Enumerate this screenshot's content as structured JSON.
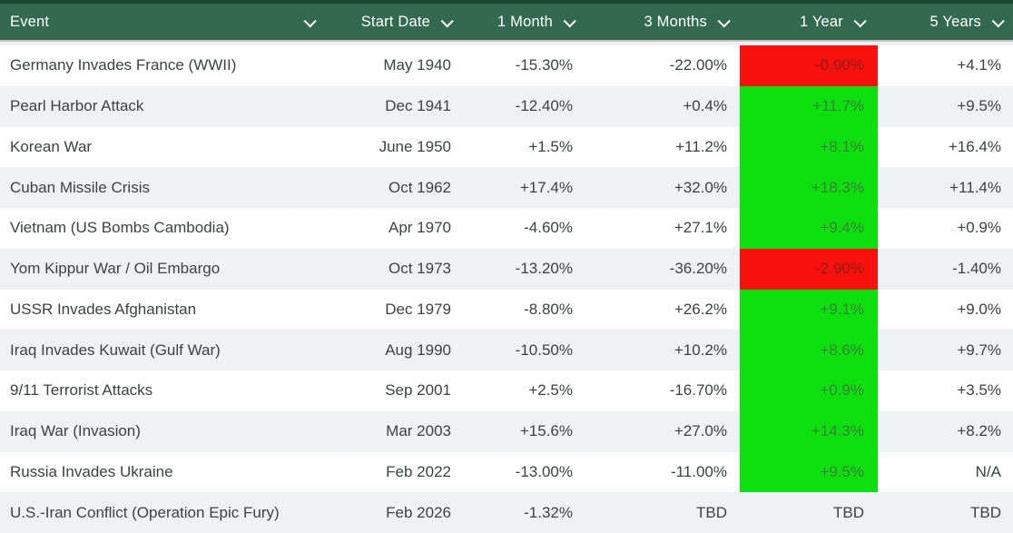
{
  "colors": {
    "header_bg": "#336951",
    "header_top_strip": "#1e4433",
    "header_text": "#ffffff",
    "row_even_bg": "#ffffff",
    "row_odd_bg": "#eff2f4",
    "body_text": "#3d4145",
    "positive_cell_bg": "#0ce00c",
    "positive_cell_text": "#3e7e3e",
    "negative_cell_bg": "#fa100d",
    "negative_cell_text": "#8e1d16",
    "gap_line": "#c7c7c7",
    "gap_bg": "#f0f0f0"
  },
  "table": {
    "columns": [
      {
        "label": "Event"
      },
      {
        "label": "Start Date"
      },
      {
        "label": "1 Month"
      },
      {
        "label": "3 Months"
      },
      {
        "label": "1 Year"
      },
      {
        "label": "5 Years"
      }
    ],
    "rows": [
      {
        "event": "Germany Invades France (WWII)",
        "start_date": "May 1940",
        "one_month": "-15.30%",
        "three_months": "-22.00%",
        "one_year": "-0.90%",
        "one_year_color": "red",
        "five_years": "+4.1%"
      },
      {
        "event": "Pearl Harbor Attack",
        "start_date": "Dec 1941",
        "one_month": "-12.40%",
        "three_months": "+0.4%",
        "one_year": "+11.7%",
        "one_year_color": "green",
        "five_years": "+9.5%"
      },
      {
        "event": "Korean War",
        "start_date": "June 1950",
        "one_month": "+1.5%",
        "three_months": "+11.2%",
        "one_year": "+8.1%",
        "one_year_color": "green",
        "five_years": "+16.4%"
      },
      {
        "event": "Cuban Missile Crisis",
        "start_date": "Oct 1962",
        "one_month": "+17.4%",
        "three_months": "+32.0%",
        "one_year": "+18.3%",
        "one_year_color": "green",
        "five_years": "+11.4%"
      },
      {
        "event": "Vietnam (US Bombs Cambodia)",
        "start_date": "Apr 1970",
        "one_month": "-4.60%",
        "three_months": "+27.1%",
        "one_year": "+9.4%",
        "one_year_color": "green",
        "five_years": "+0.9%"
      },
      {
        "event": "Yom Kippur War / Oil Embargo",
        "start_date": "Oct 1973",
        "one_month": "-13.20%",
        "three_months": "-36.20%",
        "one_year": "-2.90%",
        "one_year_color": "red",
        "five_years": "-1.40%"
      },
      {
        "event": "USSR Invades Afghanistan",
        "start_date": "Dec 1979",
        "one_month": "-8.80%",
        "three_months": "+26.2%",
        "one_year": "+9.1%",
        "one_year_color": "green",
        "five_years": "+9.0%"
      },
      {
        "event": "Iraq Invades Kuwait (Gulf War)",
        "start_date": "Aug 1990",
        "one_month": "-10.50%",
        "three_months": "+10.2%",
        "one_year": "+8.6%",
        "one_year_color": "green",
        "five_years": "+9.7%"
      },
      {
        "event": "9/11 Terrorist Attacks",
        "start_date": "Sep 2001",
        "one_month": "+2.5%",
        "three_months": "-16.70%",
        "one_year": "+0.9%",
        "one_year_color": "green",
        "five_years": "+3.5%"
      },
      {
        "event": "Iraq War (Invasion)",
        "start_date": "Mar 2003",
        "one_month": "+15.6%",
        "three_months": "+27.0%",
        "one_year": "+14.3%",
        "one_year_color": "green",
        "five_years": "+8.2%"
      },
      {
        "event": "Russia Invades Ukraine",
        "start_date": "Feb 2022",
        "one_month": "-13.00%",
        "three_months": "-11.00%",
        "one_year": "+9.5%",
        "one_year_color": "green",
        "five_years": "N/A"
      },
      {
        "event": "U.S.-Iran Conflict (Operation Epic Fury)",
        "start_date": "Feb 2026",
        "one_month": "-1.32%",
        "three_months": "TBD",
        "one_year": "TBD",
        "one_year_color": "none",
        "five_years": "TBD"
      }
    ]
  }
}
